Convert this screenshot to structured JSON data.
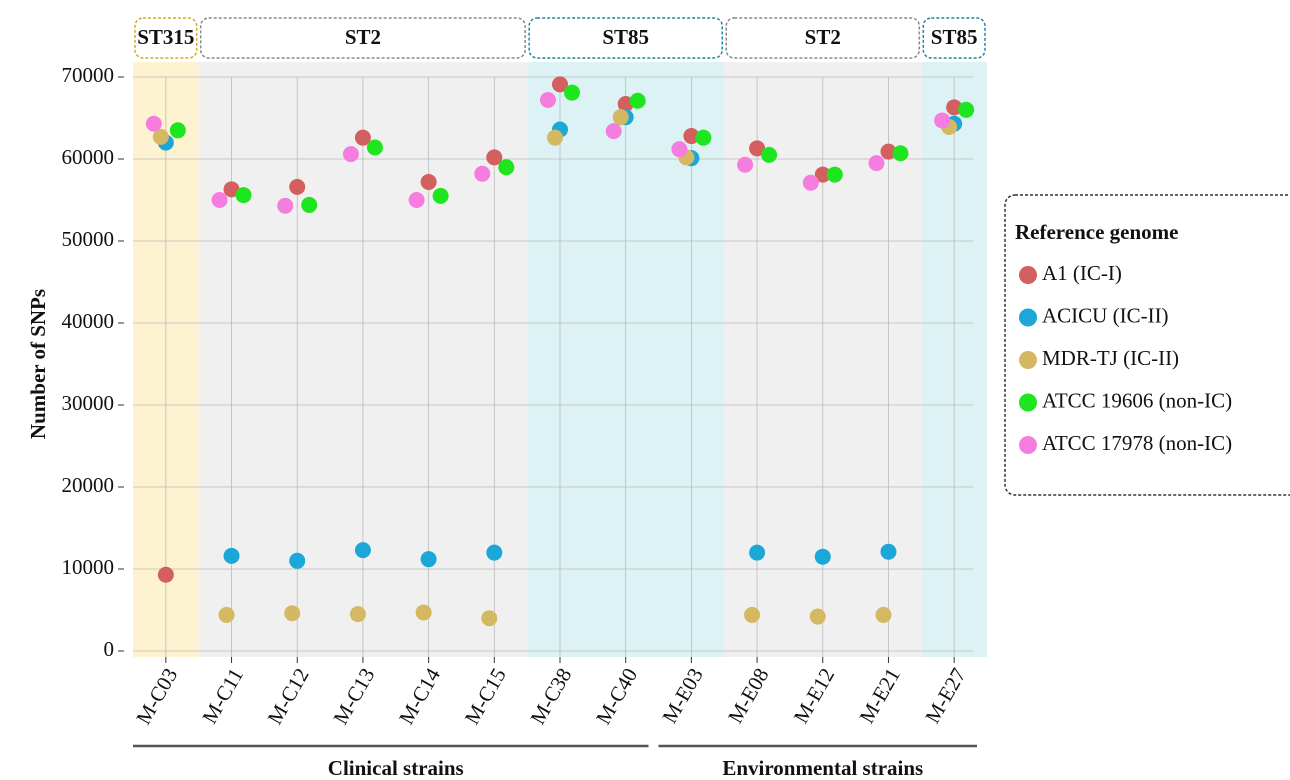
{
  "chart_data": {
    "type": "dot",
    "y_label": "Number of SNPs",
    "categories": [
      "M-C03",
      "M-C11",
      "M-C12",
      "M-C13",
      "M-C14",
      "M-C15",
      "M-C38",
      "M-C40",
      "M-E03",
      "M-E08",
      "M-E12",
      "M-E21",
      "M-E27"
    ],
    "ylim": [
      0,
      70000
    ],
    "yticks": [
      0,
      10000,
      20000,
      30000,
      40000,
      50000,
      60000,
      70000
    ],
    "grid": true,
    "legend_title": "Reference genome",
    "legend_position": "right",
    "series": [
      {
        "name": "A1 (IC-I)",
        "color": "#d35f5f",
        "values": [
          9300,
          56300,
          56600,
          62600,
          57200,
          60200,
          69100,
          66700,
          62800,
          61300,
          58100,
          60900,
          66300
        ]
      },
      {
        "name": "ACICU (IC-II)",
        "color": "#1ba7d8",
        "values": [
          62000,
          11600,
          11000,
          12300,
          11200,
          12000,
          63600,
          65100,
          60100,
          12000,
          11500,
          12100,
          64300
        ]
      },
      {
        "name": "MDR-TJ (IC-II)",
        "color": "#d4b862",
        "values": [
          62700,
          4400,
          4600,
          4500,
          4700,
          4000,
          62600,
          65100,
          60200,
          4400,
          4200,
          4400,
          63900
        ]
      },
      {
        "name": "ATCC 19606 (non-IC)",
        "color": "#1ee61e",
        "values": [
          63500,
          55600,
          54400,
          61400,
          55500,
          59000,
          68100,
          67100,
          62600,
          60500,
          58100,
          60700,
          66000
        ]
      },
      {
        "name": "ATCC 17978 (non-IC)",
        "color": "#f57de0",
        "values": [
          64300,
          55000,
          54300,
          60600,
          55000,
          58200,
          67200,
          63400,
          61200,
          59300,
          57100,
          59500,
          64700
        ]
      }
    ],
    "groups": [
      {
        "label": "ST315",
        "start": 0,
        "end": 0,
        "color": "#d4a928",
        "fill": "#fdf3d0"
      },
      {
        "label": "ST2",
        "start": 1,
        "end": 5,
        "color": "#888888",
        "fill": "#f0f0f0"
      },
      {
        "label": "ST85",
        "start": 6,
        "end": 8,
        "color": "#1a8aa5",
        "fill": "#ddf2f4"
      },
      {
        "label": "ST2",
        "start": 9,
        "end": 11,
        "color": "#888888",
        "fill": "#f0f0f0"
      },
      {
        "label": "ST85",
        "start": 12,
        "end": 12,
        "color": "#1a8aa5",
        "fill": "#ddf2f4"
      }
    ],
    "strain_groups": [
      {
        "label": "Clinical strains",
        "start": 0,
        "end": 7
      },
      {
        "label": "Environmental strains",
        "start": 8,
        "end": 12
      }
    ]
  }
}
